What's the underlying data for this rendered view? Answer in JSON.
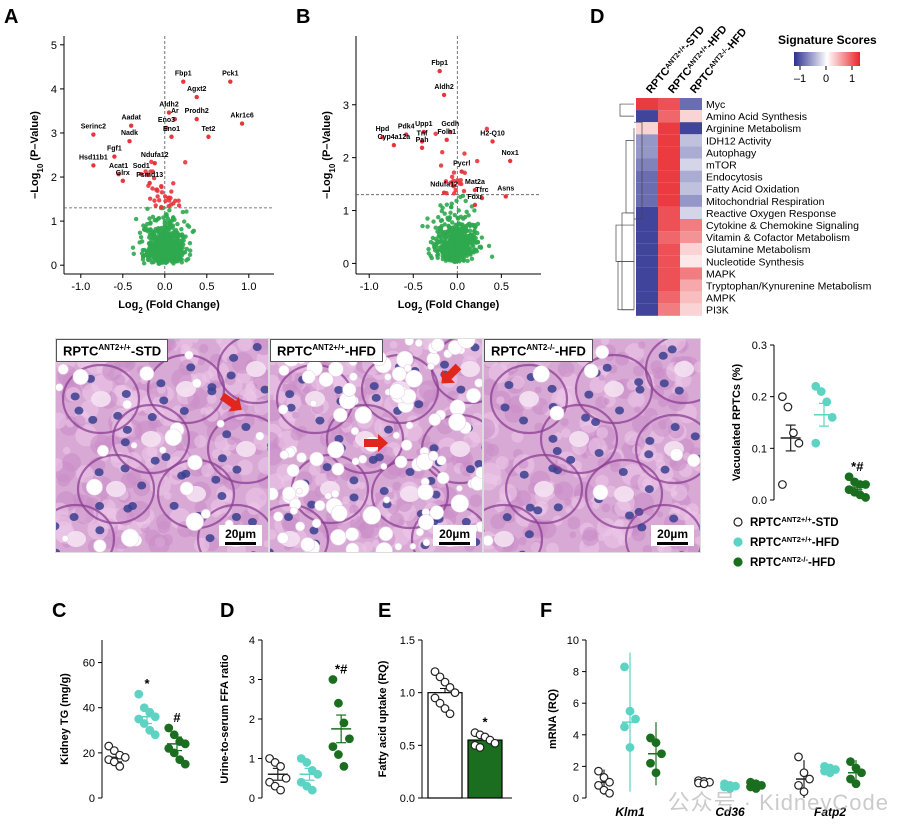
{
  "panel_labels": {
    "a": "A",
    "b": "B",
    "c": "C",
    "d": "D",
    "e": "E",
    "f": "F"
  },
  "colors": {
    "red": "#e8343b",
    "green": "#2fa84f",
    "teal": "#5dd3c3",
    "dark_green": "#1b6e20",
    "heat_blue": "#2b2f8f",
    "heat_red": "#e8262b",
    "arrow": "#e1261c"
  },
  "volcano_common": {
    "xlabel": "Log2 (Fold Change)",
    "ylabel": "-Log10 (P-Value)"
  },
  "histology": {
    "titles": [
      {
        "main": "RPTC",
        "sup": "ANT2+/+",
        "suffix": "-STD"
      },
      {
        "main": "RPTC",
        "sup": "ANT2+/+",
        "suffix": "-HFD"
      },
      {
        "main": "RPTC",
        "sup": "ANT2-/-",
        "suffix": "-HFD"
      }
    ],
    "scalebar": "20µm"
  },
  "legend_groups": [
    {
      "main": "RPTC",
      "sup": "ANT2+/+",
      "suffix": "-STD"
    },
    {
      "main": "RPTC",
      "sup": "ANT2+/+",
      "suffix": "-HFD"
    },
    {
      "main": "RPTC",
      "sup": "ANT2-/-",
      "suffix": "-HFD"
    }
  ],
  "watermark": "公众号 · KidneyCode",
  "chart_data": [
    {
      "id": "A",
      "type": "scatter",
      "subtype": "volcano",
      "xlabel": "Log2 (Fold Change)",
      "ylabel": "-Log10 (P-Value)",
      "xlim": [
        -1.2,
        1.3
      ],
      "ylim": [
        -0.2,
        5.2
      ],
      "xticks": [
        -1.0,
        -0.5,
        0.0,
        0.5,
        1.0
      ],
      "yticks": [
        0,
        1,
        2,
        3,
        4,
        5
      ],
      "threshold": 1.3,
      "labels": [
        {
          "text": "Fbp1",
          "x": 0.22,
          "y": 4.3
        },
        {
          "text": "Pck1",
          "x": 0.78,
          "y": 4.3
        },
        {
          "text": "Agxt2",
          "x": 0.38,
          "y": 3.95
        },
        {
          "text": "Aldh2",
          "x": 0.05,
          "y": 3.6
        },
        {
          "text": "Ar",
          "x": 0.12,
          "y": 3.45
        },
        {
          "text": "Prodh2",
          "x": 0.38,
          "y": 3.45
        },
        {
          "text": "Akr1c6",
          "x": 0.92,
          "y": 3.35
        },
        {
          "text": "Aadat",
          "x": -0.4,
          "y": 3.3
        },
        {
          "text": "Eno3",
          "x": 0.02,
          "y": 3.25
        },
        {
          "text": "Serinc2",
          "x": -0.85,
          "y": 3.1
        },
        {
          "text": "Eno1",
          "x": 0.08,
          "y": 3.05
        },
        {
          "text": "Tet2",
          "x": 0.52,
          "y": 3.05
        },
        {
          "text": "Nadk",
          "x": -0.42,
          "y": 2.95
        },
        {
          "text": "Fgf1",
          "x": -0.6,
          "y": 2.6
        },
        {
          "text": "Ndufa12",
          "x": -0.12,
          "y": 2.45
        },
        {
          "text": "Hsd11b1",
          "x": -0.85,
          "y": 2.4
        },
        {
          "text": "Acat1",
          "x": -0.55,
          "y": 2.2
        },
        {
          "text": "Sod1",
          "x": -0.28,
          "y": 2.2
        },
        {
          "text": "Glrx",
          "x": -0.5,
          "y": 2.05
        },
        {
          "text": "Psmd13",
          "x": -0.18,
          "y": 2.0
        }
      ]
    },
    {
      "id": "B",
      "type": "scatter",
      "subtype": "volcano",
      "xlabel": "Log2 (Fold Change)",
      "ylabel": "-Log10 (P-Value)",
      "xlim": [
        -1.15,
        0.95
      ],
      "ylim": [
        -0.2,
        4.3
      ],
      "xticks": [
        -1.0,
        -0.5,
        0.0,
        0.5
      ],
      "yticks": [
        0,
        1,
        2,
        3
      ],
      "threshold": 1.3,
      "labels": [
        {
          "text": "Fbp1",
          "x": -0.2,
          "y": 3.75
        },
        {
          "text": "Aldh2",
          "x": -0.15,
          "y": 3.3
        },
        {
          "text": "Hpd",
          "x": -0.85,
          "y": 2.5
        },
        {
          "text": "Pdk4",
          "x": -0.58,
          "y": 2.55
        },
        {
          "text": "Upp1",
          "x": -0.38,
          "y": 2.6
        },
        {
          "text": "Gcdh",
          "x": -0.08,
          "y": 2.6
        },
        {
          "text": "Tnf",
          "x": -0.4,
          "y": 2.42
        },
        {
          "text": "Folh1",
          "x": -0.12,
          "y": 2.45
        },
        {
          "text": "Cyp4a12a",
          "x": -0.72,
          "y": 2.35
        },
        {
          "text": "Pah",
          "x": -0.4,
          "y": 2.3
        },
        {
          "text": "H2-Q10",
          "x": 0.4,
          "y": 2.42
        },
        {
          "text": "Nox1",
          "x": 0.6,
          "y": 2.05
        },
        {
          "text": "Pycrl",
          "x": 0.05,
          "y": 1.85
        },
        {
          "text": "Ndufa12",
          "x": -0.15,
          "y": 1.45
        },
        {
          "text": "Mat2a",
          "x": 0.2,
          "y": 1.5
        },
        {
          "text": "Tfrc",
          "x": 0.28,
          "y": 1.35
        },
        {
          "text": "Asns",
          "x": 0.55,
          "y": 1.38
        },
        {
          "text": "Fdxr",
          "x": 0.2,
          "y": 1.22
        }
      ]
    },
    {
      "id": "D",
      "type": "heatmap",
      "title": "Signature Scores",
      "legend_ticks": [
        "-1",
        "0",
        "1"
      ],
      "columns": [
        {
          "main": "RPTC",
          "sup": "ANT2+/+",
          "suffix": "-STD"
        },
        {
          "main": "RPTC",
          "sup": "ANT2+/+",
          "suffix": "-HFD"
        },
        {
          "main": "RPTC",
          "sup": "ANT2-/-",
          "suffix": "-HFD"
        }
      ],
      "rows": [
        "Myc",
        "Amino Acid Synthesis",
        "Arginine Metabolism",
        "IDH12 Activity",
        "Autophagy",
        "mTOR",
        "Endocytosis",
        "Fatty Acid Oxidation",
        "Mitochondrial Respiration",
        "Reactive Oxygen Response",
        "Cytokine & Chemokine Signaling",
        "Vitamin & Cofactor Metabolism",
        "Glutamine Metabolism",
        "Nucleotide Synthesis",
        "MAPK",
        "Tryptophan/Kynurenine Metabolism",
        "AMPK",
        "PI3K"
      ],
      "values": [
        [
          0.9,
          0.8,
          -0.7
        ],
        [
          -0.9,
          0.7,
          0.2
        ],
        [
          0.2,
          0.9,
          -0.9
        ],
        [
          -0.5,
          0.9,
          -0.3
        ],
        [
          -0.5,
          0.9,
          -0.4
        ],
        [
          -0.6,
          0.9,
          -0.2
        ],
        [
          -0.7,
          0.9,
          -0.4
        ],
        [
          -0.7,
          0.9,
          -0.3
        ],
        [
          -0.7,
          0.9,
          -0.5
        ],
        [
          -0.9,
          0.8,
          -0.2
        ],
        [
          -0.9,
          0.8,
          0.6
        ],
        [
          -0.9,
          0.7,
          0.5
        ],
        [
          -0.9,
          0.8,
          0.2
        ],
        [
          -0.9,
          0.8,
          0.1
        ],
        [
          -0.9,
          0.8,
          0.6
        ],
        [
          -0.9,
          0.8,
          0.4
        ],
        [
          -0.9,
          0.7,
          0.3
        ],
        [
          -0.9,
          0.6,
          0.2
        ]
      ]
    },
    {
      "id": "vacuolated",
      "type": "scatter",
      "subtype": "dot-plot",
      "ylabel": "Vacuolated RPTCs (%)",
      "ylim": [
        0,
        0.3
      ],
      "yticks": [
        0.0,
        0.1,
        0.2,
        0.3
      ],
      "groups": [
        {
          "mean": 0.12,
          "sem": 0.025,
          "points": [
            0.2,
            0.18,
            0.13,
            0.11,
            0.03
          ]
        },
        {
          "mean": 0.165,
          "sem": 0.022,
          "points": [
            0.22,
            0.21,
            0.19,
            0.16,
            0.11
          ]
        },
        {
          "mean": 0.025,
          "sem": 0.005,
          "points": [
            0.045,
            0.035,
            0.03,
            0.03,
            0.02,
            0.015,
            0.01,
            0.005
          ]
        }
      ],
      "annotations": [
        {
          "group": 2,
          "text": "*#"
        }
      ]
    },
    {
      "id": "C",
      "type": "scatter",
      "subtype": "dot-plot",
      "ylabel": "Kidney TG (mg/g)",
      "ylim": [
        0,
        70
      ],
      "yticks": [
        0,
        20,
        40,
        60
      ],
      "groups": [
        {
          "mean": 18,
          "sem": 2,
          "points": [
            23,
            21,
            19,
            18,
            17,
            16,
            14
          ]
        },
        {
          "mean": 36,
          "sem": 3,
          "points": [
            46,
            40,
            38,
            36,
            35,
            33,
            30,
            28
          ]
        },
        {
          "mean": 24,
          "sem": 3,
          "points": [
            31,
            28,
            25,
            24,
            22,
            20,
            17,
            15
          ]
        }
      ],
      "annotations": [
        {
          "group": 1,
          "text": "*"
        },
        {
          "group": 2,
          "text": "#"
        }
      ]
    },
    {
      "id": "D2",
      "type": "scatter",
      "subtype": "dot-plot",
      "ylabel": "Urine-to-serum FFA ratio",
      "ylim": [
        0,
        4
      ],
      "yticks": [
        0,
        1,
        2,
        3,
        4
      ],
      "groups": [
        {
          "mean": 0.6,
          "sem": 0.15,
          "points": [
            1.0,
            0.9,
            0.8,
            0.5,
            0.4,
            0.3,
            0.2
          ]
        },
        {
          "mean": 0.6,
          "sem": 0.15,
          "points": [
            1.0,
            0.9,
            0.7,
            0.6,
            0.4,
            0.3,
            0.2
          ]
        },
        {
          "mean": 1.75,
          "sem": 0.35,
          "points": [
            3.0,
            2.4,
            1.9,
            1.5,
            1.3,
            1.1,
            0.8
          ]
        }
      ],
      "annotations": [
        {
          "group": 2,
          "text": "*#"
        }
      ]
    },
    {
      "id": "E",
      "type": "bar",
      "subtype": "bar-with-points",
      "ylabel": "Fatty acid uptake (RQ)",
      "ylim": [
        0,
        1.5
      ],
      "yticks": [
        0.0,
        0.5,
        1.0,
        1.5
      ],
      "categories": [
        "",
        ""
      ],
      "values": [
        1.0,
        0.55
      ],
      "sem": [
        0.04,
        0.03
      ],
      "points": [
        [
          1.2,
          1.15,
          1.1,
          1.05,
          1.0,
          0.95,
          0.9,
          0.85,
          0.8
        ],
        [
          0.62,
          0.6,
          0.58,
          0.55,
          0.52,
          0.5,
          0.48
        ]
      ],
      "annotations": [
        {
          "group": 1,
          "text": "*"
        }
      ]
    },
    {
      "id": "F",
      "type": "scatter",
      "subtype": "grouped-dot-plot",
      "ylabel": "mRNA (RQ)",
      "ylim": [
        0,
        10
      ],
      "yticks": [
        0,
        2,
        4,
        6,
        8,
        10
      ],
      "categories": [
        "Klm1",
        "Cd36",
        "Fatp2"
      ],
      "groups_per_category": [
        [
          {
            "mean": 1.0,
            "sem": 0.4,
            "points": [
              1.7,
              1.3,
              1.0,
              0.8,
              0.5,
              0.3
            ]
          },
          {
            "mean": 4.8,
            "sem": 2.2,
            "points": [
              8.3,
              5.5,
              5.0,
              4.5,
              3.2
            ]
          },
          {
            "mean": 2.8,
            "sem": 1.0,
            "points": [
              3.8,
              3.5,
              2.8,
              2.2,
              1.6
            ]
          }
        ],
        [
          {
            "mean": 1.0,
            "sem": 0.05,
            "points": [
              1.1,
              1.05,
              1.0,
              0.95,
              0.9
            ]
          },
          {
            "mean": 0.75,
            "sem": 0.1,
            "points": [
              0.9,
              0.8,
              0.75,
              0.7,
              0.6
            ]
          },
          {
            "mean": 0.8,
            "sem": 0.1,
            "points": [
              1.0,
              0.9,
              0.8,
              0.7,
              0.6
            ]
          }
        ],
        [
          {
            "mean": 1.2,
            "sem": 0.6,
            "points": [
              2.6,
              1.6,
              1.2,
              0.8,
              0.4
            ]
          },
          {
            "mean": 1.8,
            "sem": 0.15,
            "points": [
              2.0,
              1.9,
              1.8,
              1.7,
              1.6
            ]
          },
          {
            "mean": 1.6,
            "sem": 0.4,
            "points": [
              2.3,
              1.9,
              1.6,
              1.2,
              0.9
            ]
          }
        ]
      ]
    }
  ]
}
